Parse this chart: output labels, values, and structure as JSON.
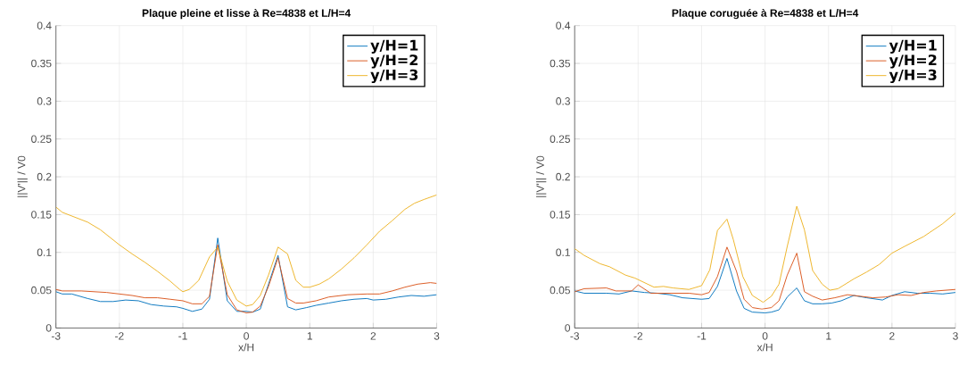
{
  "chart_data": [
    {
      "type": "line",
      "title": "Plaque pleine et lisse à Re=4838 et L/H=4",
      "xlabel": "x/H",
      "ylabel": "||V'|| / V0",
      "xlim": [
        -3,
        3
      ],
      "ylim": [
        0,
        0.4
      ],
      "xticks": [
        -3,
        -2,
        -1,
        0,
        1,
        2,
        3
      ],
      "yticks": [
        0,
        0.05,
        0.1,
        0.15,
        0.2,
        0.25,
        0.3,
        0.35,
        0.4
      ],
      "grid": true,
      "legend": "top right",
      "series": [
        {
          "name": "y/H=1",
          "color": "#0072bd",
          "x": [
            -3,
            -2.9,
            -2.75,
            -2.5,
            -2.3,
            -2.1,
            -1.9,
            -1.7,
            -1.5,
            -1.3,
            -1.1,
            -1,
            -0.85,
            -0.7,
            -0.58,
            -0.45,
            -0.3,
            -0.15,
            0,
            0.1,
            0.22,
            0.35,
            0.5,
            0.65,
            0.78,
            0.95,
            1.1,
            1.3,
            1.5,
            1.7,
            1.9,
            2.0,
            2.2,
            2.4,
            2.6,
            2.8,
            3
          ],
          "values": [
            0.048,
            0.045,
            0.045,
            0.039,
            0.035,
            0.035,
            0.037,
            0.036,
            0.031,
            0.029,
            0.028,
            0.026,
            0.022,
            0.025,
            0.038,
            0.119,
            0.036,
            0.022,
            0.022,
            0.021,
            0.025,
            0.058,
            0.096,
            0.028,
            0.024,
            0.027,
            0.03,
            0.033,
            0.036,
            0.038,
            0.039,
            0.037,
            0.038,
            0.041,
            0.043,
            0.042,
            0.044
          ]
        },
        {
          "name": "y/H=2",
          "color": "#d95319",
          "x": [
            -3,
            -2.9,
            -2.6,
            -2.2,
            -2,
            -1.8,
            -1.6,
            -1.4,
            -1.2,
            -1,
            -0.85,
            -0.7,
            -0.58,
            -0.45,
            -0.3,
            -0.15,
            0,
            0.1,
            0.22,
            0.35,
            0.5,
            0.65,
            0.78,
            0.9,
            1.1,
            1.3,
            1.6,
            1.9,
            2.1,
            2.3,
            2.5,
            2.7,
            2.9,
            3
          ],
          "values": [
            0.051,
            0.049,
            0.049,
            0.047,
            0.045,
            0.043,
            0.04,
            0.04,
            0.038,
            0.036,
            0.032,
            0.032,
            0.042,
            0.11,
            0.044,
            0.024,
            0.02,
            0.021,
            0.029,
            0.055,
            0.093,
            0.039,
            0.033,
            0.033,
            0.036,
            0.041,
            0.044,
            0.045,
            0.045,
            0.049,
            0.054,
            0.058,
            0.06,
            0.059
          ]
        },
        {
          "name": "y/H=3",
          "color": "#edb120",
          "x": [
            -3,
            -2.9,
            -2.5,
            -2.3,
            -2,
            -1.8,
            -1.6,
            -1.4,
            -1.2,
            -1.05,
            -1,
            -0.9,
            -0.75,
            -0.58,
            -0.45,
            -0.3,
            -0.15,
            0,
            0.1,
            0.22,
            0.35,
            0.5,
            0.65,
            0.78,
            0.9,
            1,
            1.15,
            1.3,
            1.5,
            1.7,
            1.9,
            2.1,
            2.3,
            2.5,
            2.65,
            2.8,
            3
          ],
          "values": [
            0.16,
            0.153,
            0.14,
            0.13,
            0.11,
            0.098,
            0.087,
            0.075,
            0.062,
            0.051,
            0.048,
            0.051,
            0.063,
            0.094,
            0.107,
            0.062,
            0.037,
            0.029,
            0.031,
            0.043,
            0.07,
            0.107,
            0.098,
            0.063,
            0.054,
            0.054,
            0.058,
            0.065,
            0.078,
            0.093,
            0.11,
            0.128,
            0.142,
            0.157,
            0.165,
            0.17,
            0.176
          ]
        }
      ]
    },
    {
      "type": "line",
      "title": "Plaque coruguée à Re=4838 et L/H=4",
      "xlabel": "x/H",
      "ylabel": "||V'|| / V0",
      "xlim": [
        -3,
        3
      ],
      "ylim": [
        0,
        0.4
      ],
      "xticks": [
        -3,
        -2,
        -1,
        0,
        1,
        2,
        3
      ],
      "yticks": [
        0,
        0.05,
        0.1,
        0.15,
        0.2,
        0.25,
        0.3,
        0.35,
        0.4
      ],
      "grid": true,
      "legend": "top right",
      "series": [
        {
          "name": "y/H=1",
          "color": "#0072bd",
          "x": [
            -3,
            -2.85,
            -2.5,
            -2.3,
            -2.1,
            -1.9,
            -1.7,
            -1.5,
            -1.3,
            -1,
            -0.88,
            -0.75,
            -0.6,
            -0.45,
            -0.33,
            -0.2,
            0,
            0.1,
            0.22,
            0.35,
            0.5,
            0.62,
            0.75,
            0.9,
            1.05,
            1.2,
            1.4,
            1.6,
            1.85,
            2,
            2.2,
            2.4,
            2.6,
            2.8,
            3
          ],
          "values": [
            0.049,
            0.046,
            0.046,
            0.045,
            0.049,
            0.047,
            0.046,
            0.044,
            0.04,
            0.038,
            0.039,
            0.055,
            0.092,
            0.049,
            0.026,
            0.021,
            0.02,
            0.021,
            0.024,
            0.041,
            0.053,
            0.036,
            0.032,
            0.032,
            0.033,
            0.036,
            0.043,
            0.04,
            0.037,
            0.043,
            0.048,
            0.046,
            0.046,
            0.045,
            0.047
          ]
        },
        {
          "name": "y/H=2",
          "color": "#d95319",
          "x": [
            -3,
            -2.85,
            -2.5,
            -2.35,
            -2.1,
            -2.0,
            -1.8,
            -1.5,
            -1.2,
            -1,
            -0.88,
            -0.75,
            -0.6,
            -0.45,
            -0.33,
            -0.2,
            -0.05,
            0.1,
            0.22,
            0.35,
            0.5,
            0.62,
            0.75,
            0.9,
            1.1,
            1.3,
            1.5,
            1.7,
            1.9,
            2.1,
            2.3,
            2.5,
            2.7,
            3
          ],
          "values": [
            0.048,
            0.052,
            0.053,
            0.049,
            0.049,
            0.057,
            0.046,
            0.046,
            0.046,
            0.044,
            0.047,
            0.068,
            0.107,
            0.075,
            0.038,
            0.027,
            0.025,
            0.027,
            0.036,
            0.07,
            0.099,
            0.048,
            0.042,
            0.037,
            0.04,
            0.044,
            0.042,
            0.04,
            0.041,
            0.044,
            0.043,
            0.047,
            0.049,
            0.051
          ]
        },
        {
          "name": "y/H=3",
          "color": "#edb120",
          "x": [
            -3,
            -2.85,
            -2.6,
            -2.45,
            -2.2,
            -2.05,
            -1.85,
            -1.75,
            -1.6,
            -1.45,
            -1.2,
            -1,
            -0.87,
            -0.75,
            -0.6,
            -0.5,
            -0.35,
            -0.2,
            -0.03,
            0.1,
            0.22,
            0.35,
            0.5,
            0.62,
            0.75,
            0.9,
            1.02,
            1.15,
            1.4,
            1.6,
            1.8,
            2,
            2.2,
            2.5,
            2.8,
            3
          ],
          "values": [
            0.105,
            0.096,
            0.085,
            0.081,
            0.07,
            0.066,
            0.058,
            0.054,
            0.055,
            0.053,
            0.051,
            0.056,
            0.077,
            0.129,
            0.144,
            0.117,
            0.068,
            0.043,
            0.034,
            0.042,
            0.058,
            0.108,
            0.161,
            0.13,
            0.076,
            0.058,
            0.05,
            0.052,
            0.065,
            0.074,
            0.084,
            0.099,
            0.108,
            0.121,
            0.138,
            0.152
          ]
        }
      ]
    }
  ]
}
